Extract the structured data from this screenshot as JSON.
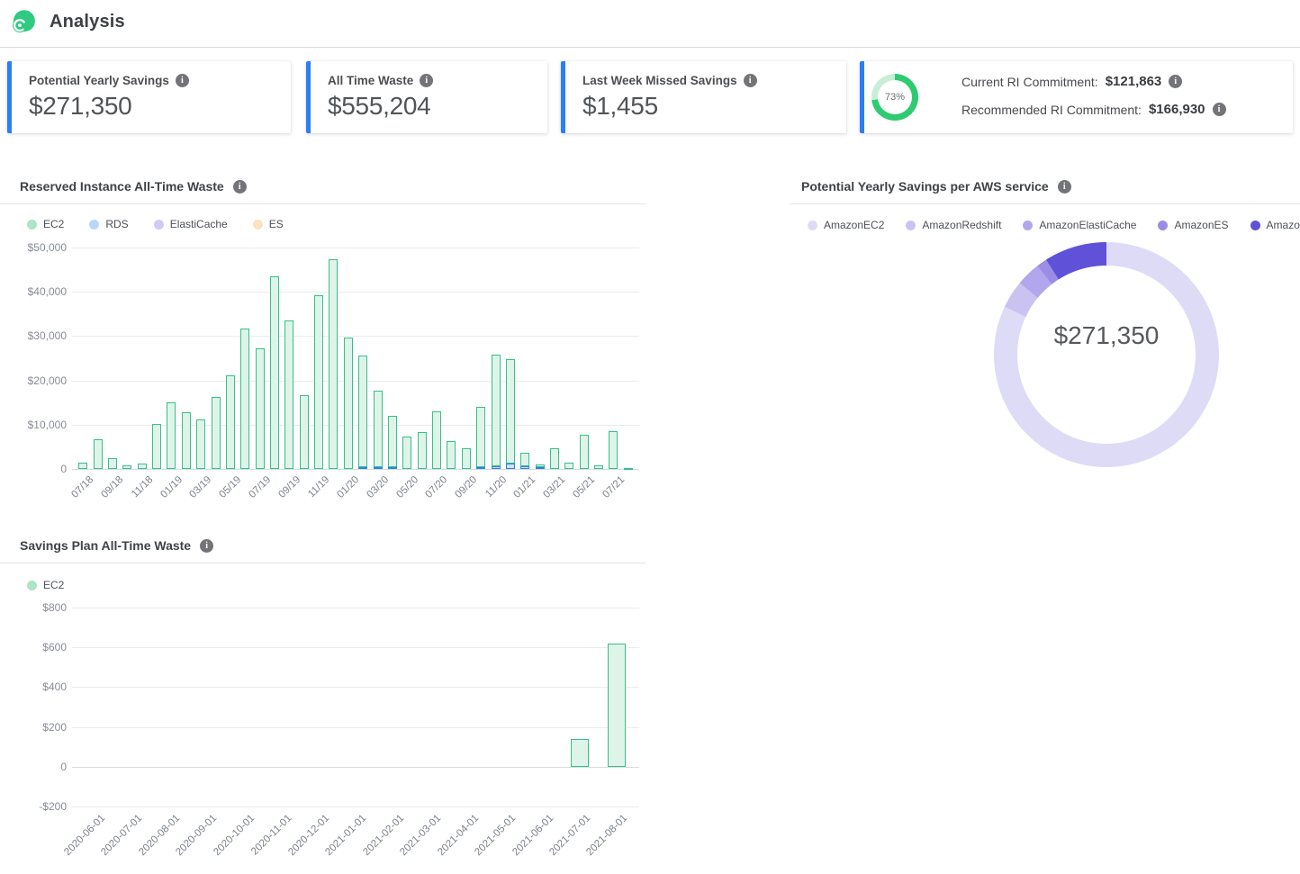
{
  "header": {
    "title": "Analysis",
    "logo": "spot-logo"
  },
  "icons": {
    "info": "i"
  },
  "colors": {
    "accent_blue": "#2b7ff2",
    "gauge_green": "#2ecb71",
    "gauge_track": "#c9eed8",
    "bar_green_border": "#36c08a",
    "bar_green_fill": "#def4e9",
    "bar_blue_border": "#2b7ff2",
    "bar_blue_fill": "#cfe3fc"
  },
  "cards": [
    {
      "label": "Potential Yearly Savings",
      "value": "$271,350"
    },
    {
      "label": "All Time Waste",
      "value": "$555,204"
    },
    {
      "label": "Last Week Missed Savings",
      "value": "$1,455"
    },
    {
      "gauge_percent": "73%",
      "lines": [
        {
          "label": "Current RI Commitment:",
          "value": "$121,863"
        },
        {
          "label": "Recommended RI Commitment:",
          "value": "$166,930"
        }
      ]
    }
  ],
  "chart_data": [
    {
      "id": "ri_waste",
      "type": "bar",
      "stacked": true,
      "title": "Reserved Instance All-Time Waste",
      "legend": [
        {
          "name": "EC2",
          "color": "#ade3c6"
        },
        {
          "name": "RDS",
          "color": "#b9d7fa"
        },
        {
          "name": "ElastiCache",
          "color": "#d2c9f6"
        },
        {
          "name": "ES",
          "color": "#fae3be"
        }
      ],
      "x": [
        "07/18",
        "08/18",
        "09/18",
        "10/18",
        "11/18",
        "12/18",
        "01/19",
        "02/19",
        "03/19",
        "04/19",
        "05/19",
        "06/19",
        "07/19",
        "08/19",
        "09/19",
        "10/19",
        "11/19",
        "12/19",
        "01/20",
        "02/20",
        "03/20",
        "04/20",
        "05/20",
        "06/20",
        "07/20",
        "08/20",
        "09/20",
        "10/20",
        "11/20",
        "12/20",
        "01/21",
        "02/21",
        "03/21",
        "04/21",
        "05/21",
        "06/21",
        "07/21",
        "08/21"
      ],
      "tick_every": 2,
      "series": [
        {
          "name": "RDS",
          "border": "#2b7ff2",
          "fill": "#cfe3fc",
          "values": [
            0,
            0,
            0,
            0,
            0,
            0,
            0,
            0,
            0,
            0,
            0,
            0,
            0,
            0,
            0,
            0,
            0,
            0,
            0,
            400,
            400,
            400,
            0,
            0,
            0,
            0,
            0,
            400,
            700,
            1200,
            700,
            500,
            0,
            0,
            0,
            0,
            0,
            0
          ]
        },
        {
          "name": "EC2",
          "border": "#36c08a",
          "fill": "#def4e9",
          "values": [
            1500,
            6800,
            2400,
            900,
            1300,
            10200,
            15000,
            12900,
            11200,
            16300,
            21200,
            31700,
            27300,
            43400,
            33600,
            16700,
            39200,
            47300,
            29700,
            25300,
            17300,
            11500,
            7300,
            8300,
            13000,
            6300,
            4700,
            13600,
            25100,
            23500,
            3000,
            500,
            4600,
            1500,
            7800,
            900,
            8600,
            300
          ]
        }
      ],
      "ylim": [
        0,
        50000
      ],
      "yticks": [
        [
          0,
          "0"
        ],
        [
          10000,
          "$10,000"
        ],
        [
          20000,
          "$20,000"
        ],
        [
          30000,
          "$30,000"
        ],
        [
          40000,
          "$40,000"
        ],
        [
          50000,
          "$50,000"
        ]
      ]
    },
    {
      "id": "savings_per_service",
      "type": "pie",
      "title": "Potential Yearly Savings per AWS service",
      "center_value": "$271,350",
      "slices": [
        {
          "name": "AmazonEC2",
          "percent": 82,
          "color": "#dedbf7"
        },
        {
          "name": "AmazonRedshift",
          "percent": 4,
          "color": "#cac3f1"
        },
        {
          "name": "AmazonElastiCache",
          "percent": 3.5,
          "color": "#b2a7ec"
        },
        {
          "name": "AmazonES",
          "percent": 1.5,
          "color": "#9b8ce6"
        },
        {
          "name": "AmazonRDS",
          "percent": 9,
          "color": "#6052d8"
        }
      ]
    },
    {
      "id": "sp_waste",
      "type": "bar",
      "stacked": false,
      "title": "Savings Plan All-Time Waste",
      "legend": [
        {
          "name": "EC2",
          "color": "#ade3c6"
        }
      ],
      "x": [
        "2020-06-01",
        "2020-07-01",
        "2020-08-01",
        "2020-09-01",
        "2020-10-01",
        "2020-11-01",
        "2020-12-01",
        "2021-01-01",
        "2021-02-01",
        "2021-03-01",
        "2021-04-01",
        "2021-05-01",
        "2021-06-01",
        "2021-07-01",
        "2021-08-01"
      ],
      "tick_every": 1,
      "series": [
        {
          "name": "EC2",
          "border": "#36c08a",
          "fill": "#def4e9",
          "values": [
            0,
            0,
            0,
            0,
            0,
            0,
            0,
            0,
            0,
            0,
            0,
            0,
            0,
            140,
            620
          ]
        }
      ],
      "ylim": [
        -200,
        800
      ],
      "yticks": [
        [
          -200,
          "-$200"
        ],
        [
          0,
          "0"
        ],
        [
          200,
          "$200"
        ],
        [
          400,
          "$400"
        ],
        [
          600,
          "$600"
        ],
        [
          800,
          "$800"
        ]
      ]
    }
  ]
}
